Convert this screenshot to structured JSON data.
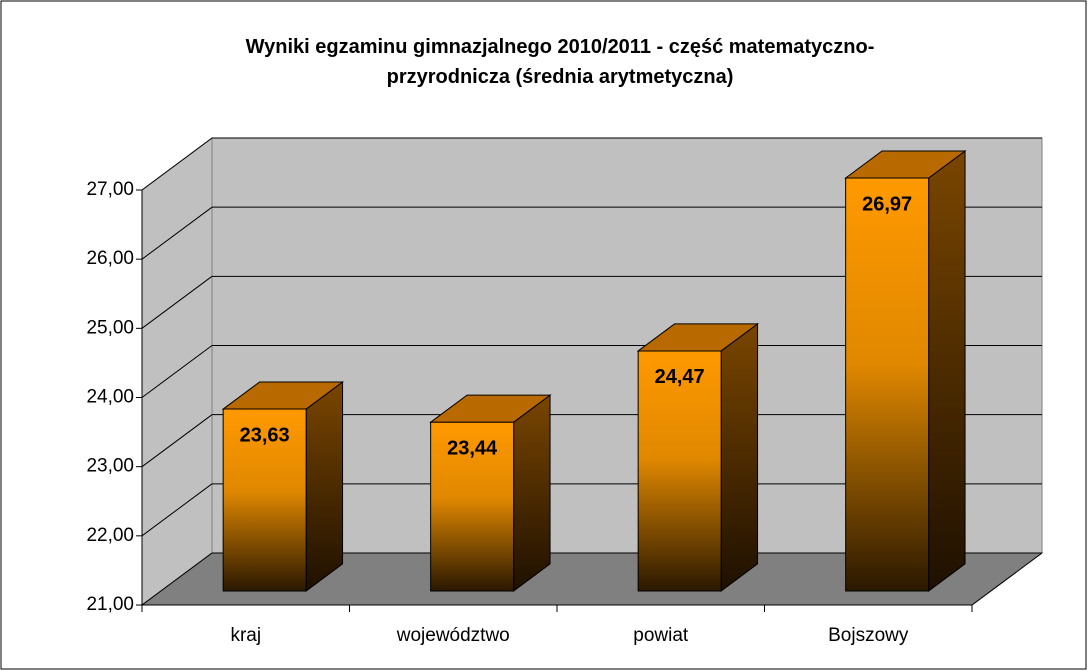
{
  "chart_data": {
    "type": "bar3d",
    "title": "Wyniki egzaminu gimnazjalnego 2010/2011 - część matematyczno-przyrodnicza (średnia arytmetyczna)",
    "categories": [
      "kraj",
      "województwo",
      "powiat",
      "Bojszowy"
    ],
    "values": [
      23.63,
      23.44,
      24.47,
      26.97
    ],
    "value_labels": [
      "23,63",
      "23,44",
      "24,47",
      "26,97"
    ],
    "color": "#ff9900",
    "ylim": [
      21,
      27
    ],
    "yticks": [
      {
        "value": 21,
        "label": "21,00"
      },
      {
        "value": 22,
        "label": "22,00"
      },
      {
        "value": 23,
        "label": "23,00"
      },
      {
        "value": 24,
        "label": "24,00"
      },
      {
        "value": 25,
        "label": "25,00"
      },
      {
        "value": 26,
        "label": "26,00"
      },
      {
        "value": 27,
        "label": "27,00"
      }
    ],
    "grid": true
  }
}
